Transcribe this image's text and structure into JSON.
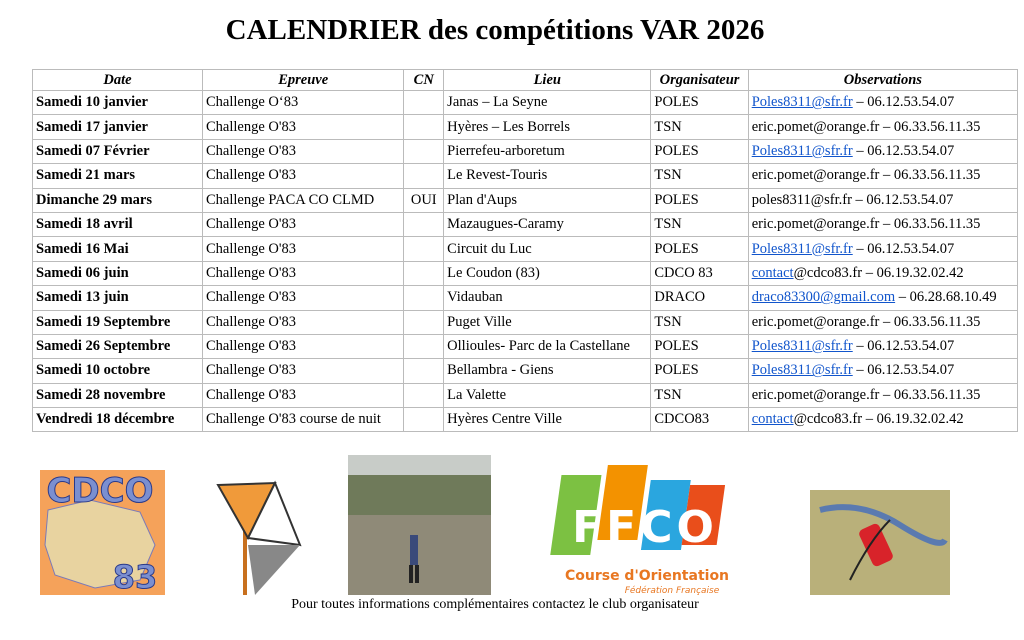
{
  "header": {
    "title": "CALENDRIER des compétitions VAR 2026"
  },
  "table": {
    "headers": [
      "Date",
      "Epreuve",
      "CN",
      "Lieu",
      "Organisateur",
      "Observations"
    ],
    "rows": [
      {
        "date": "Samedi 10 janvier",
        "epreuve": "Challenge O‘83",
        "cn": null,
        "lieu": "Janas – La Seyne",
        "org": "POLES",
        "obs": {
          "link": "Poles8311@sfr.fr",
          "text": " – 06.12.53.54.07"
        }
      },
      {
        "date": "Samedi 17 janvier",
        "epreuve": "Challenge O'83",
        "cn": null,
        "lieu": "Hyères – Les Borrels",
        "org": "TSN",
        "obs": {
          "link": null,
          "text": "eric.pomet@orange.fr – 06.33.56.11.35"
        }
      },
      {
        "date": "Samedi 07 Février",
        "epreuve": "Challenge O'83",
        "cn": null,
        "lieu": "Pierrefeu-arboretum",
        "org": "POLES",
        "obs": {
          "link": "Poles8311@sfr.fr",
          "text": " – 06.12.53.54.07"
        }
      },
      {
        "date": "Samedi 21 mars",
        "epreuve": "Challenge O'83",
        "cn": null,
        "lieu": "Le Revest-Touris",
        "org": "TSN",
        "obs": {
          "link": null,
          "text": "eric.pomet@orange.fr – 06.33.56.11.35"
        }
      },
      {
        "date": "Dimanche 29 mars",
        "epreuve": "Challenge PACA CO CLMD",
        "cn": "OUI",
        "lieu": "Plan d'Aups",
        "org": "POLES",
        "obs": {
          "link": null,
          "text": "poles8311@sfr.fr – 06.12.53.54.07"
        }
      },
      {
        "date": "Samedi 18 avril",
        "epreuve": "Challenge O'83",
        "cn": null,
        "lieu": "Mazaugues-Caramy",
        "org": "TSN",
        "obs": {
          "link": null,
          "text": "eric.pomet@orange.fr – 06.33.56.11.35"
        }
      },
      {
        "date": "Samedi 16 Mai",
        "epreuve": "Challenge O'83",
        "cn": null,
        "lieu": "Circuit du Luc",
        "org": "POLES",
        "obs": {
          "link": "Poles8311@sfr.fr",
          "text": " – 06.12.53.54.07"
        }
      },
      {
        "date": "Samedi 06 juin",
        "epreuve": "Challenge O'83",
        "cn": null,
        "lieu": "Le Coudon (83)",
        "org": "CDCO 83",
        "obs": {
          "link": "contact",
          "text": "@cdco83.fr – 06.19.32.02.42"
        }
      },
      {
        "date": "Samedi 13 juin",
        "epreuve": "Challenge O'83",
        "cn": null,
        "lieu": "Vidauban",
        "org": "DRACO",
        "obs": {
          "link": "draco83300@gmail.com",
          "text": " – 06.28.68.10.49"
        }
      },
      {
        "date": "Samedi 19 Septembre",
        "epreuve": "Challenge O'83",
        "cn": null,
        "lieu": "Puget Ville",
        "org": "TSN",
        "obs": {
          "link": null,
          "text": "eric.pomet@orange.fr – 06.33.56.11.35"
        }
      },
      {
        "date": "Samedi 26 Septembre",
        "epreuve": "Challenge O'83",
        "cn": null,
        "lieu": "Ollioules- Parc de la Castellane",
        "org": "POLES",
        "obs": {
          "link": "Poles8311@sfr.fr",
          "text": " – 06.12.53.54.07"
        }
      },
      {
        "date": "Samedi 10 octobre",
        "epreuve": "Challenge O'83",
        "cn": null,
        "lieu": "Bellambra - Giens",
        "org": "POLES",
        "obs": {
          "link": "Poles8311@sfr.fr",
          "text": " – 06.12.53.54.07"
        }
      },
      {
        "date": "Samedi 28 novembre",
        "epreuve": "Challenge O'83",
        "cn": null,
        "lieu": "La Valette",
        "org": "TSN",
        "obs": {
          "link": null,
          "text": "eric.pomet@orange.fr – 06.33.56.11.35"
        }
      },
      {
        "date": "Vendredi 18 décembre",
        "epreuve": "Challenge O'83 course de nuit",
        "cn": null,
        "lieu": "Hyères Centre Ville",
        "org": "CDCO83",
        "obs": {
          "link": "contact",
          "text": "@cdco83.fr – 06.19.32.02.42"
        }
      }
    ]
  },
  "logos": {
    "cdco": "CDCO",
    "cdco_num": "83",
    "ffco": "FFCO",
    "ffco_line1": "Course d'Orientation",
    "ffco_line2": "Fédération Française"
  },
  "footer": "Pour toutes informations complémentaires contactez le club organisateur"
}
